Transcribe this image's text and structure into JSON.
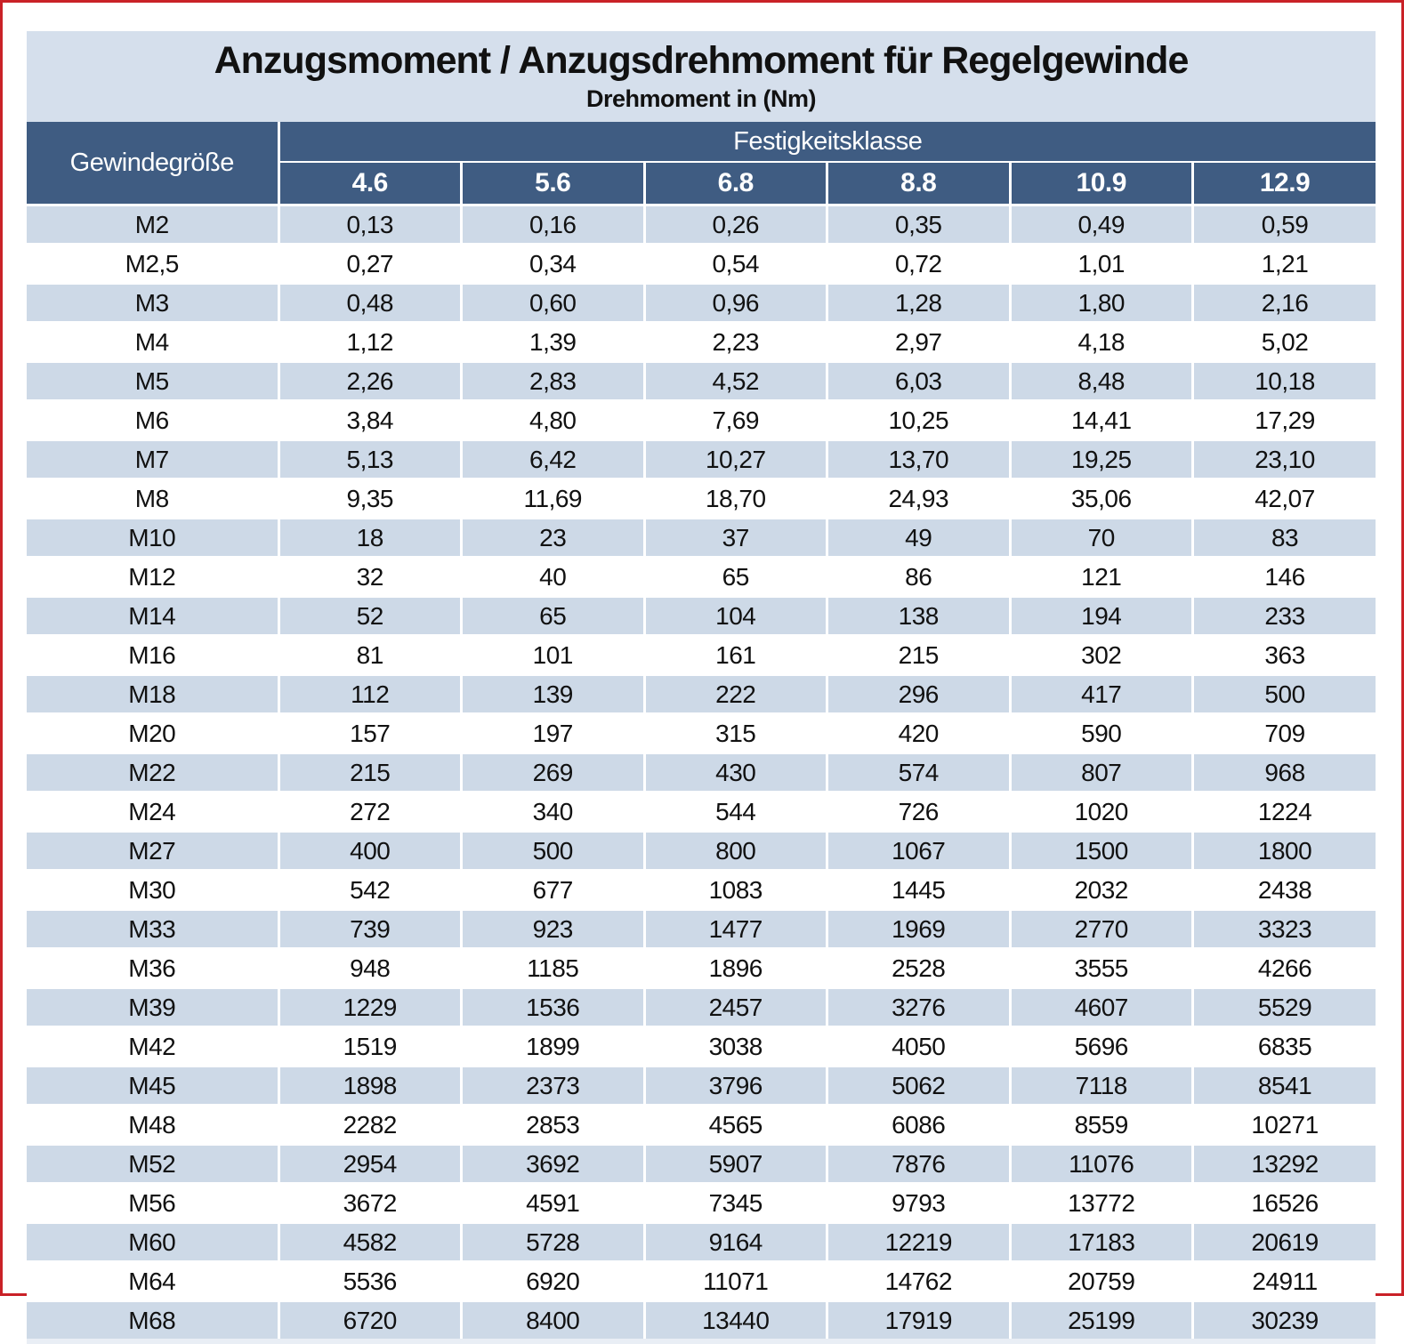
{
  "page": {
    "border_color": "#c92127",
    "background": "#ffffff"
  },
  "table": {
    "title": "Anzugsmoment / Anzugsdrehmoment für Regelgewinde",
    "subtitle": "Drehmoment in (Nm)",
    "col1_header": "Gewindegröße",
    "group_header": "Festigkeitsklasse",
    "class_headers": [
      "4.6",
      "5.6",
      "6.8",
      "8.8",
      "10.9",
      "12.9"
    ],
    "colors": {
      "header_bg": "#3f5c82",
      "stripe_bg": "#cdd9e7",
      "title_band_bg": "#d5dfec",
      "plain_row_bg": "#ffffff",
      "header_text": "#ffffff",
      "body_text": "#111111"
    },
    "rows": [
      {
        "size": "M2",
        "values": [
          "0,13",
          "0,16",
          "0,26",
          "0,35",
          "0,49",
          "0,59"
        ]
      },
      {
        "size": "M2,5",
        "values": [
          "0,27",
          "0,34",
          "0,54",
          "0,72",
          "1,01",
          "1,21"
        ]
      },
      {
        "size": "M3",
        "values": [
          "0,48",
          "0,60",
          "0,96",
          "1,28",
          "1,80",
          "2,16"
        ]
      },
      {
        "size": "M4",
        "values": [
          "1,12",
          "1,39",
          "2,23",
          "2,97",
          "4,18",
          "5,02"
        ]
      },
      {
        "size": "M5",
        "values": [
          "2,26",
          "2,83",
          "4,52",
          "6,03",
          "8,48",
          "10,18"
        ]
      },
      {
        "size": "M6",
        "values": [
          "3,84",
          "4,80",
          "7,69",
          "10,25",
          "14,41",
          "17,29"
        ]
      },
      {
        "size": "M7",
        "values": [
          "5,13",
          "6,42",
          "10,27",
          "13,70",
          "19,25",
          "23,10"
        ]
      },
      {
        "size": "M8",
        "values": [
          "9,35",
          "11,69",
          "18,70",
          "24,93",
          "35,06",
          "42,07"
        ]
      },
      {
        "size": "M10",
        "values": [
          "18",
          "23",
          "37",
          "49",
          "70",
          "83"
        ]
      },
      {
        "size": "M12",
        "values": [
          "32",
          "40",
          "65",
          "86",
          "121",
          "146"
        ]
      },
      {
        "size": "M14",
        "values": [
          "52",
          "65",
          "104",
          "138",
          "194",
          "233"
        ]
      },
      {
        "size": "M16",
        "values": [
          "81",
          "101",
          "161",
          "215",
          "302",
          "363"
        ]
      },
      {
        "size": "M18",
        "values": [
          "112",
          "139",
          "222",
          "296",
          "417",
          "500"
        ]
      },
      {
        "size": "M20",
        "values": [
          "157",
          "197",
          "315",
          "420",
          "590",
          "709"
        ]
      },
      {
        "size": "M22",
        "values": [
          "215",
          "269",
          "430",
          "574",
          "807",
          "968"
        ]
      },
      {
        "size": "M24",
        "values": [
          "272",
          "340",
          "544",
          "726",
          "1020",
          "1224"
        ]
      },
      {
        "size": "M27",
        "values": [
          "400",
          "500",
          "800",
          "1067",
          "1500",
          "1800"
        ]
      },
      {
        "size": "M30",
        "values": [
          "542",
          "677",
          "1083",
          "1445",
          "2032",
          "2438"
        ]
      },
      {
        "size": "M33",
        "values": [
          "739",
          "923",
          "1477",
          "1969",
          "2770",
          "3323"
        ]
      },
      {
        "size": "M36",
        "values": [
          "948",
          "1185",
          "1896",
          "2528",
          "3555",
          "4266"
        ]
      },
      {
        "size": "M39",
        "values": [
          "1229",
          "1536",
          "2457",
          "3276",
          "4607",
          "5529"
        ]
      },
      {
        "size": "M42",
        "values": [
          "1519",
          "1899",
          "3038",
          "4050",
          "5696",
          "6835"
        ]
      },
      {
        "size": "M45",
        "values": [
          "1898",
          "2373",
          "3796",
          "5062",
          "7118",
          "8541"
        ]
      },
      {
        "size": "M48",
        "values": [
          "2282",
          "2853",
          "4565",
          "6086",
          "8559",
          "10271"
        ]
      },
      {
        "size": "M52",
        "values": [
          "2954",
          "3692",
          "5907",
          "7876",
          "11076",
          "13292"
        ]
      },
      {
        "size": "M56",
        "values": [
          "3672",
          "4591",
          "7345",
          "9793",
          "13772",
          "16526"
        ]
      },
      {
        "size": "M60",
        "values": [
          "4582",
          "5728",
          "9164",
          "12219",
          "17183",
          "20619"
        ]
      },
      {
        "size": "M64",
        "values": [
          "5536",
          "6920",
          "11071",
          "14762",
          "20759",
          "24911"
        ]
      },
      {
        "size": "M68",
        "values": [
          "6720",
          "8400",
          "13440",
          "17919",
          "25199",
          "30239"
        ]
      }
    ]
  }
}
